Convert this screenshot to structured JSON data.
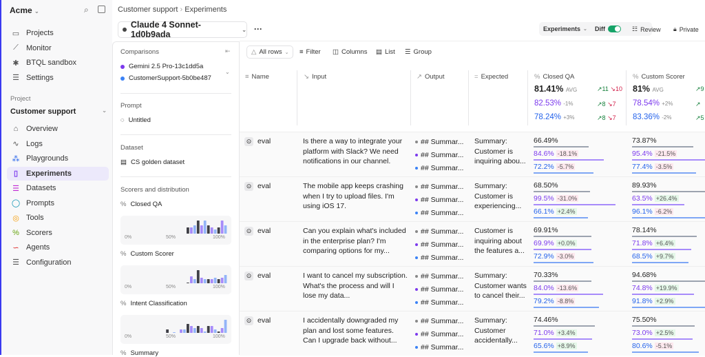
{
  "sidebar": {
    "org": "Acme",
    "top_items": [
      {
        "label": "Projects",
        "icon": "folder-icon"
      },
      {
        "label": "Monitor",
        "icon": "chart-icon"
      },
      {
        "label": "BTQL sandbox",
        "icon": "asterisk-icon"
      },
      {
        "label": "Settings",
        "icon": "sliders-icon"
      }
    ],
    "project_label": "Project",
    "project_name": "Customer support",
    "project_items": [
      {
        "label": "Overview",
        "icon": "home-icon"
      },
      {
        "label": "Logs",
        "icon": "activity-icon"
      },
      {
        "label": "Playgrounds",
        "icon": "shapes-icon"
      },
      {
        "label": "Experiments",
        "icon": "beaker-icon",
        "active": true
      },
      {
        "label": "Datasets",
        "icon": "database-icon"
      },
      {
        "label": "Prompts",
        "icon": "chat-icon"
      },
      {
        "label": "Tools",
        "icon": "tool-icon"
      },
      {
        "label": "Scorers",
        "icon": "percent-icon"
      },
      {
        "label": "Agents",
        "icon": "route-icon"
      },
      {
        "label": "Configuration",
        "icon": "sliders-icon"
      }
    ]
  },
  "breadcrumb": {
    "project": "Customer support",
    "page": "Experiments"
  },
  "experiment": {
    "name": "Claude 4 Sonnet-1d0b9ada",
    "more": "···"
  },
  "topbar": {
    "experiments": "Experiments",
    "diff": "Diff",
    "diff_on": true,
    "review": "Review",
    "private": "Private"
  },
  "panel": {
    "comparisons_label": "Comparisons",
    "comparisons": [
      {
        "name": "Gemini 2.5 Pro-13c1dd5a",
        "color": "#7c3aed"
      },
      {
        "name": "CustomerSupport-5b0be487",
        "color": "#3b82f6"
      }
    ],
    "prompt_label": "Prompt",
    "prompt": "Untitled",
    "dataset_label": "Dataset",
    "dataset": "CS golden dataset",
    "scorers_label": "Scorers and distribution",
    "ticks": [
      "0%",
      "50%",
      "100%"
    ],
    "scorers": [
      {
        "name": "Closed QA",
        "bins": [
          {
            "from": 60,
            "counts": [
              9,
              9,
              12
            ]
          },
          {
            "from": 70,
            "counts": [
              19,
              12,
              19
            ]
          },
          {
            "from": 80,
            "counts": [
              12,
              9,
              6
            ]
          },
          {
            "from": 90,
            "counts": [
              9,
              19,
              12
            ]
          }
        ]
      },
      {
        "name": "Custom Scorer",
        "bins": [
          {
            "from": 60,
            "counts": [
              1,
              10,
              6
            ]
          },
          {
            "from": 70,
            "counts": [
              19,
              8,
              6
            ]
          },
          {
            "from": 80,
            "counts": [
              6,
              6,
              8
            ]
          },
          {
            "from": 90,
            "counts": [
              6,
              8,
              12
            ]
          }
        ]
      },
      {
        "name": "Intent Classification",
        "bins": [
          {
            "from": 40,
            "counts": [
              5,
              0,
              1
            ]
          },
          {
            "from": 50,
            "counts": [
              0,
              5,
              5
            ]
          },
          {
            "from": 60,
            "counts": [
              13,
              10,
              7
            ]
          },
          {
            "from": 70,
            "counts": [
              10,
              7,
              2
            ]
          },
          {
            "from": 80,
            "counts": [
              10,
              10,
              5
            ]
          },
          {
            "from": 90,
            "counts": [
              2,
              7,
              19
            ]
          }
        ]
      },
      {
        "name": "Summary"
      }
    ]
  },
  "toolbar": {
    "all_rows": "All rows",
    "filter": "Filter",
    "columns": "Columns",
    "list": "List",
    "group": "Group"
  },
  "columns": {
    "name": "Name",
    "input": "Input",
    "output": "Output",
    "expected": "Expected",
    "s1": "Closed QA",
    "s2": "Custom Scorer"
  },
  "summary": {
    "avg": "AVG",
    "s1": [
      {
        "v": "81.41%",
        "d": "",
        "up": "↗11",
        "dn": "↘10"
      },
      {
        "v": "82.53%",
        "d": "-1%",
        "up": "↗8",
        "dn": "↘7"
      },
      {
        "v": "78.24%",
        "d": "+3%",
        "up": "↗8",
        "dn": "↘7"
      }
    ],
    "s2": [
      {
        "v": "81%",
        "d": "",
        "up": "↗9"
      },
      {
        "v": "78.54%",
        "d": "+2%",
        "up": "↗"
      },
      {
        "v": "83.36%",
        "d": "-2%",
        "up": "↗5"
      }
    ]
  },
  "colors": {
    "base": "#222222",
    "compare1": "#7c3aed",
    "compare2": "#2563eb"
  },
  "rows": [
    {
      "name": "eval",
      "input": "Is there a way to integrate your platform with Slack? We need notifications in our channel.",
      "output": [
        "## Summar...",
        "## Summar...",
        "## Summar..."
      ],
      "expected": "Summary: Customer is inquiring abou...",
      "s1": [
        {
          "v": 66.49,
          "t": "66.49%"
        },
        {
          "v": 84.6,
          "t": "84.6%",
          "d": "-18.1%"
        },
        {
          "v": 72.2,
          "t": "72.2%",
          "d": "-5.7%"
        }
      ],
      "s2": [
        {
          "v": 73.87,
          "t": "73.87%"
        },
        {
          "v": 95.4,
          "t": "95.4%",
          "d": "-21.5%"
        },
        {
          "v": 77.4,
          "t": "77.4%",
          "d": "-3.5%"
        }
      ]
    },
    {
      "name": "eval",
      "input": "The mobile app keeps crashing when I try to upload files. I'm using iOS 17.",
      "output": [
        "## Summar...",
        "## Summar...",
        "## Summar..."
      ],
      "expected": "Summary: Customer is experiencing...",
      "s1": [
        {
          "v": 68.5,
          "t": "68.50%"
        },
        {
          "v": 99.5,
          "t": "99.5%",
          "d": "-31.0%"
        },
        {
          "v": 66.1,
          "t": "66.1%",
          "d": "+2.4%"
        }
      ],
      "s2": [
        {
          "v": 89.93,
          "t": "89.93%"
        },
        {
          "v": 63.5,
          "t": "63.5%",
          "d": "+26.4%"
        },
        {
          "v": 96.1,
          "t": "96.1%",
          "d": "-6.2%"
        }
      ]
    },
    {
      "name": "eval",
      "input": "Can you explain what's included in the enterprise plan? I'm comparing options for my...",
      "output": [
        "## Summar...",
        "## Summar...",
        "## Summar..."
      ],
      "expected": "Customer is inquiring about the features a...",
      "s1": [
        {
          "v": 69.91,
          "t": "69.91%"
        },
        {
          "v": 69.9,
          "t": "69.9%",
          "d": "+0.0%"
        },
        {
          "v": 72.9,
          "t": "72.9%",
          "d": "-3.0%"
        }
      ],
      "s2": [
        {
          "v": 78.14,
          "t": "78.14%"
        },
        {
          "v": 71.8,
          "t": "71.8%",
          "d": "+6.4%"
        },
        {
          "v": 68.5,
          "t": "68.5%",
          "d": "+9.7%"
        }
      ]
    },
    {
      "name": "eval",
      "input": "I want to cancel my subscription. What's the process and will I lose my data...",
      "output": [
        "## Summar...",
        "## Summar...",
        "## Summar..."
      ],
      "expected": "Summary: Customer wants to cancel their...",
      "s1": [
        {
          "v": 70.33,
          "t": "70.33%"
        },
        {
          "v": 84.0,
          "t": "84.0%",
          "d": "-13.6%"
        },
        {
          "v": 79.2,
          "t": "79.2%",
          "d": "-8.8%"
        }
      ],
      "s2": [
        {
          "v": 94.68,
          "t": "94.68%"
        },
        {
          "v": 74.8,
          "t": "74.8%",
          "d": "+19.9%"
        },
        {
          "v": 91.8,
          "t": "91.8%",
          "d": "+2.9%"
        }
      ]
    },
    {
      "name": "eval",
      "input": "I accidentally downgraded my plan and lost some features. Can I upgrade back without...",
      "output": [
        "## Summar...",
        "## Summar...",
        "## Summar..."
      ],
      "expected": "Summary: Customer accidentally...",
      "s1": [
        {
          "v": 74.46,
          "t": "74.46%"
        },
        {
          "v": 71.0,
          "t": "71.0%",
          "d": "+3.4%"
        },
        {
          "v": 65.6,
          "t": "65.6%",
          "d": "+8.9%"
        }
      ],
      "s2": [
        {
          "v": 75.5,
          "t": "75.50%"
        },
        {
          "v": 73.0,
          "t": "73.0%",
          "d": "+2.5%"
        },
        {
          "v": 80.6,
          "t": "80.6%",
          "d": "-5.1%"
        }
      ]
    }
  ]
}
